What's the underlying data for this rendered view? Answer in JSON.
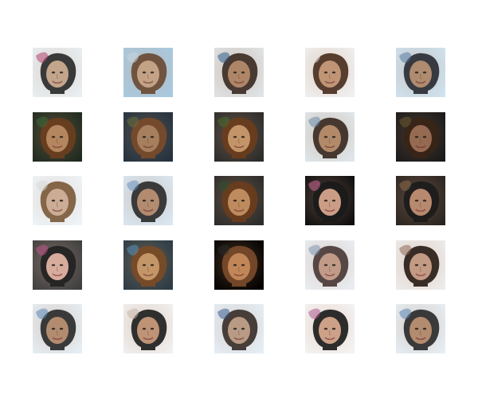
{
  "grid": {
    "rows": 5,
    "cols": 5,
    "tiles": [
      {
        "bg": "#e8eef2",
        "face": "#c9ab8f",
        "hair": "#2a2a2a",
        "accent": "#b0436f"
      },
      {
        "bg": "#a9c9df",
        "face": "#c7a789",
        "hair": "#6a4a33",
        "accent": "#c8d6e0"
      },
      {
        "bg": "#dfe3e6",
        "face": "#b48a6a",
        "hair": "#3c2c24",
        "accent": "#2f5f8f"
      },
      {
        "bg": "#f0f0f0",
        "face": "#c69a7a",
        "hair": "#4a2f1f",
        "accent": "#e6e1db"
      },
      {
        "bg": "#cfe2ef",
        "face": "#b58f72",
        "hair": "#2a2d33",
        "accent": "#5a7ba2"
      },
      {
        "bg": "#1f2a1f",
        "face": "#b88a63",
        "hair": "#6b3e1e",
        "accent": "#3b6b3b"
      },
      {
        "bg": "#24323f",
        "face": "#a98262",
        "hair": "#7a4b2a",
        "accent": "#6b6f3b"
      },
      {
        "bg": "#2b2b2b",
        "face": "#c8996d",
        "hair": "#6a3d1c",
        "accent": "#4b6b2f"
      },
      {
        "bg": "#dfe6ea",
        "face": "#b88e6d",
        "hair": "#3a2a22",
        "accent": "#6b8aa8"
      },
      {
        "bg": "#1a1a1a",
        "face": "#9a6f54",
        "hair": "#3a2417",
        "accent": "#6b5a2f"
      },
      {
        "bg": "#eef4f8",
        "face": "#d0b09a",
        "hair": "#7b5a3b",
        "accent": "#d7d7d7"
      },
      {
        "bg": "#d9e7f2",
        "face": "#b98f72",
        "hair": "#2d2d2d",
        "accent": "#6a8fbf"
      },
      {
        "bg": "#2b2b2b",
        "face": "#c38f63",
        "hair": "#6a3d1c",
        "accent": "#2f4f2f"
      },
      {
        "bg": "#0e0e0e",
        "face": "#d6a48c",
        "hair": "#1a1a1a",
        "accent": "#d06a9a"
      },
      {
        "bg": "#2a2420",
        "face": "#c08f73",
        "hair": "#1b1b1b",
        "accent": "#8b6a4a"
      },
      {
        "bg": "#3f3f3f",
        "face": "#e0b3a3",
        "hair": "#222222",
        "accent": "#c2558a"
      },
      {
        "bg": "#2b3b45",
        "face": "#c89a6a",
        "hair": "#7b4b25",
        "accent": "#5a8fb6"
      },
      {
        "bg": "#000000",
        "face": "#c58a5b",
        "hair": "#7a4b2a",
        "accent": "#2a2a2a"
      },
      {
        "bg": "#e9edf1",
        "face": "#c8a08c",
        "hair": "#4a3a37",
        "accent": "#7f95b0"
      },
      {
        "bg": "#ecebea",
        "face": "#caa089",
        "hair": "#2a1d17",
        "accent": "#8f6a5a"
      },
      {
        "bg": "#e6eef4",
        "face": "#b99073",
        "hair": "#2b2b2b",
        "accent": "#5a86b4"
      },
      {
        "bg": "#f0f0f0",
        "face": "#c7997a",
        "hair": "#1f1f1f",
        "accent": "#c8b6a7"
      },
      {
        "bg": "#e5eef6",
        "face": "#c0a089",
        "hair": "#3a2f2a",
        "accent": "#3b5f8f"
      },
      {
        "bg": "#f3f3f3",
        "face": "#d6a88d",
        "hair": "#1c1c1c",
        "accent": "#b05a8f"
      },
      {
        "bg": "#e6eef4",
        "face": "#b98f72",
        "hair": "#2b2b2b",
        "accent": "#5a86b4"
      }
    ]
  }
}
